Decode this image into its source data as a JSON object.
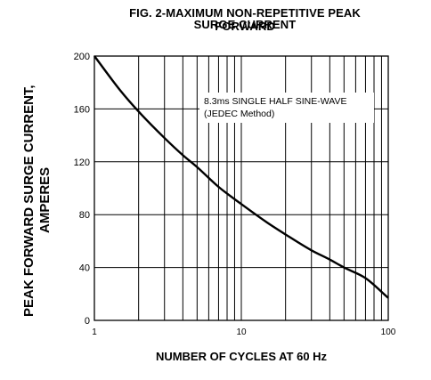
{
  "chart_data": {
    "type": "line",
    "title_line1": "FIG. 2-MAXIMUM NON-REPETITIVE PEAK FORWARD",
    "title_line2": "SURGE CURRENT",
    "xlabel": "NUMBER OF CYCLES AT 60 Hz",
    "ylabel_line1": "PEAK  FORWARD SURGE CURRENT,",
    "ylabel_line2": "AMPERES",
    "x_scale": "log",
    "xlim": [
      1,
      100
    ],
    "ylim": [
      0,
      200
    ],
    "x_ticks": [
      1,
      10,
      100
    ],
    "y_ticks": [
      0,
      40,
      80,
      120,
      160,
      200
    ],
    "grid": true,
    "annotation_line1": "8.3ms SINGLE HALF SINE-WAVE",
    "annotation_line2": "(JEDEC Method)",
    "series": [
      {
        "x": [
          1,
          1.5,
          2,
          3,
          4,
          5,
          7,
          10,
          15,
          20,
          30,
          40,
          50,
          70,
          100
        ],
        "y": [
          200,
          174,
          158,
          138,
          125,
          116,
          101,
          88,
          74,
          65,
          53,
          46,
          40,
          32,
          17
        ]
      }
    ]
  }
}
